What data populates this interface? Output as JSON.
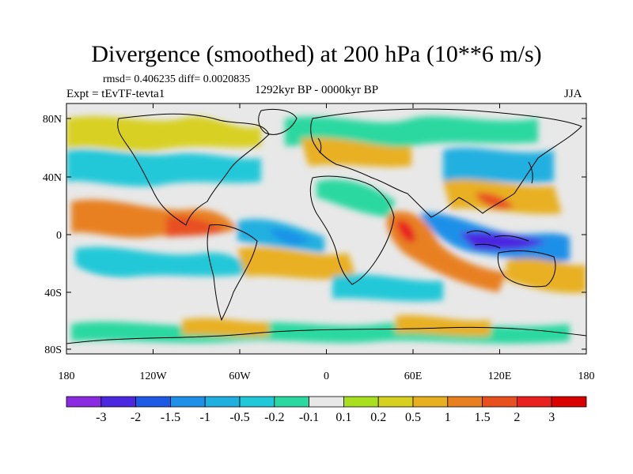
{
  "title": "Divergence (smoothed) at 200 hPa (10**6 m/s)",
  "stats": "rmsd= 0.406235 diff= 0.0020835",
  "experiment": "Expt = tEvTF-tevta1",
  "period": "1292kyr BP - 0000kyr BP",
  "season": "JJA",
  "lat_ticks": [
    "80N",
    "40N",
    "0",
    "40S",
    "80S"
  ],
  "lon_ticks": [
    "180",
    "120W",
    "60W",
    "0",
    "60E",
    "120E",
    "180"
  ],
  "colorbar": {
    "labels": [
      "-3",
      "-2",
      "-1.5",
      "-1",
      "-0.5",
      "-0.2",
      "-0.1",
      "0.1",
      "0.2",
      "0.5",
      "1",
      "1.5",
      "2",
      "3"
    ],
    "colors": [
      "#8a2be2",
      "#4b28e0",
      "#1e5ae6",
      "#1e90e8",
      "#20b0e0",
      "#20c8d8",
      "#2ad8a0",
      "#e8e8e8",
      "#a8e020",
      "#d8d020",
      "#e8b020",
      "#e88020",
      "#e85020",
      "#e82020",
      "#d80000"
    ]
  },
  "colors": {
    "land_outline": "#000000",
    "background": "#e8e8e8"
  }
}
